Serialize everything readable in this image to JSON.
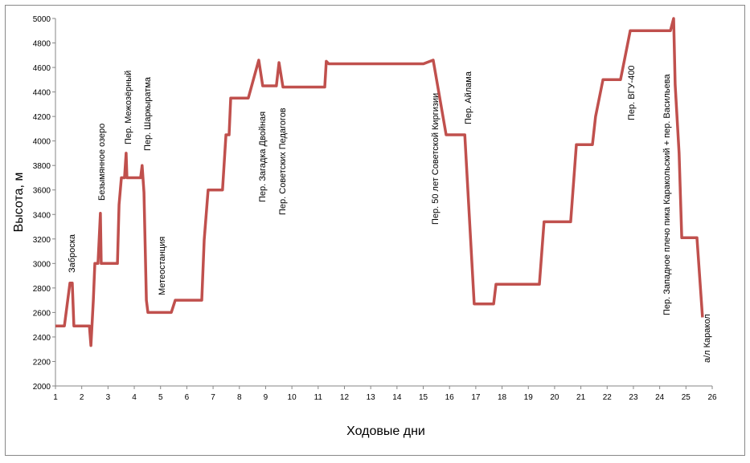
{
  "chart_data": {
    "type": "line",
    "x_label": "Ходовые дни",
    "y_label": "Высота, м",
    "xlim": [
      1,
      26
    ],
    "ylim": [
      2000,
      5000
    ],
    "xticks": [
      1,
      2,
      3,
      4,
      5,
      6,
      7,
      8,
      9,
      10,
      11,
      12,
      13,
      14,
      15,
      16,
      17,
      18,
      19,
      20,
      21,
      22,
      23,
      24,
      25,
      26
    ],
    "yticks": [
      2000,
      2200,
      2400,
      2600,
      2800,
      3000,
      3200,
      3400,
      3600,
      3800,
      4000,
      4200,
      4400,
      4600,
      4800,
      5000
    ],
    "grid": false,
    "color": "#c0504d",
    "x": [
      1,
      1.34,
      1.55,
      1.64,
      1.7,
      2.29,
      2.35,
      2.44,
      2.5,
      2.62,
      2.71,
      2.74,
      3.36,
      3.42,
      3.51,
      3.63,
      3.69,
      3.72,
      4.24,
      4.3,
      4.37,
      4.46,
      4.52,
      5.41,
      5.56,
      6.57,
      6.66,
      6.81,
      7.36,
      7.49,
      7.61,
      7.67,
      8.34,
      8.74,
      8.89,
      9.41,
      9.51,
      9.66,
      11.25,
      11.31,
      11.4,
      15.01,
      15.38,
      15.87,
      16.58,
      16.94,
      17.68,
      17.77,
      19.42,
      19.6,
      20.61,
      20.83,
      21.44,
      21.56,
      21.84,
      22.51,
      22.66,
      22.88,
      24.41,
      24.53,
      24.59,
      24.74,
      24.84,
      25.42,
      25.63
    ],
    "values": [
      2490,
      2490,
      2840,
      2840,
      2490,
      2490,
      2330,
      2700,
      3000,
      3000,
      3410,
      3000,
      3000,
      3480,
      3700,
      3700,
      3900,
      3700,
      3700,
      3800,
      3580,
      2700,
      2600,
      2600,
      2700,
      2700,
      3190,
      3600,
      3600,
      4050,
      4050,
      4350,
      4350,
      4660,
      4450,
      4450,
      4640,
      4440,
      4440,
      4650,
      4630,
      4630,
      4660,
      4050,
      4050,
      2670,
      2670,
      2830,
      2830,
      3340,
      3340,
      3970,
      3970,
      4200,
      4500,
      4500,
      4660,
      4900,
      4900,
      5000,
      4460,
      3900,
      3210,
      3210,
      2560
    ],
    "annotations": [
      "Заброска",
      "Безымянное озеро",
      "Пер. Межозёрный",
      "Пер. Шаркыратма",
      "Метеостанция",
      "Пер. Загадка Двойная",
      "Пер. Советских Педагогов",
      "Пер. 50 лет Советской Киргизии",
      "Пер. Айлама",
      "Пер. ВГУ-400",
      "Пер. Западное плечо пика Каракольский + пер. Васильева",
      "а/л Каракол"
    ]
  }
}
